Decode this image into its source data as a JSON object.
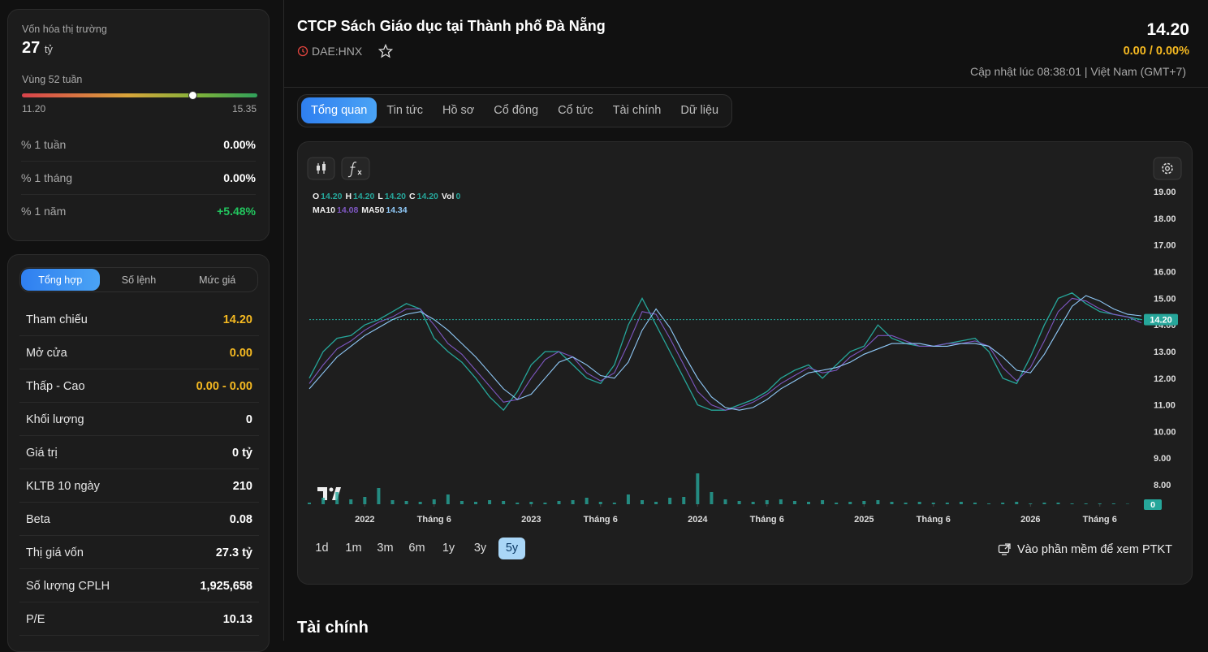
{
  "sidebar": {
    "market_cap": {
      "label": "Vốn hóa thị trường",
      "value": "27",
      "unit": "tỷ"
    },
    "range52": {
      "label": "Vùng 52 tuần",
      "low": {
        "value": 11.2,
        "label": "11.20"
      },
      "high": {
        "value": 15.35,
        "label": "15.35"
      },
      "current": 14.2
    },
    "changes": [
      {
        "label": "% 1 tuần",
        "value": "0.00%",
        "color": "#ffffff"
      },
      {
        "label": "% 1 tháng",
        "value": "0.00%",
        "color": "#ffffff"
      },
      {
        "label": "% 1 năm",
        "value": "+5.48%",
        "color": "#22c55e"
      }
    ],
    "tabs": [
      "Tổng hợp",
      "Số lệnh",
      "Mức giá"
    ],
    "active_tab": 0,
    "stats": [
      {
        "label": "Tham chiếu",
        "value": "14.20",
        "color": "#f5b921"
      },
      {
        "label": "Mở cửa",
        "value": "0.00",
        "color": "#f5b921"
      },
      {
        "label": "Thấp - Cao",
        "value": "0.00 - 0.00",
        "color": "#f5b921"
      },
      {
        "label": "Khối lượng",
        "value": "0",
        "color": "#ffffff"
      },
      {
        "label": "Giá trị",
        "value": "0 tỷ",
        "color": "#ffffff"
      },
      {
        "label": "KLTB 10 ngày",
        "value": "210",
        "color": "#ffffff"
      },
      {
        "label": "Beta",
        "value": "0.08",
        "color": "#ffffff"
      },
      {
        "label": "Thị giá vốn",
        "value": "27.3 tỷ",
        "color": "#ffffff"
      },
      {
        "label": "Số lượng CPLH",
        "value": "1,925,658",
        "color": "#ffffff"
      },
      {
        "label": "P/E",
        "value": "10.13",
        "color": "#ffffff"
      }
    ]
  },
  "header": {
    "title": "CTCP Sách Giáo dục tại Thành phố Đà Nẵng",
    "ticker": "DAE:HNX",
    "price": "14.20",
    "change": "0.00 / 0.00%",
    "updated": "Cập nhật lúc 08:38:01 | Việt Nam (GMT+7)"
  },
  "tabs": [
    "Tổng quan",
    "Tin tức",
    "Hồ sơ",
    "Cổ đông",
    "Cổ tức",
    "Tài chính",
    "Dữ liệu"
  ],
  "active_tab": 0,
  "chart_data": {
    "type": "line",
    "legend_ohlc": [
      {
        "key": "O",
        "text": "14.20"
      },
      {
        "key": "H",
        "text": "14.20"
      },
      {
        "key": "L",
        "text": "14.20"
      },
      {
        "key": "C",
        "text": "14.20"
      },
      {
        "key": "Vol",
        "text": "0"
      }
    ],
    "x": [
      0,
      1,
      2,
      3,
      4,
      5,
      6,
      7,
      8,
      9,
      10,
      11,
      12,
      13,
      14,
      15,
      16,
      17,
      18,
      19,
      20,
      21,
      22,
      23,
      24,
      25,
      26,
      27,
      28,
      29,
      30,
      31,
      32,
      33,
      34,
      35,
      36,
      37,
      38,
      39,
      40,
      41,
      42,
      43,
      44,
      45,
      46,
      47,
      48,
      49,
      50,
      51,
      52,
      53,
      54,
      55,
      56,
      57,
      58,
      59,
      60
    ],
    "xlim": [
      0,
      60
    ],
    "xticks": [
      {
        "value": 4,
        "label": "2022"
      },
      {
        "value": 9,
        "label": "Tháng 6"
      },
      {
        "value": 16,
        "label": "2023"
      },
      {
        "value": 21,
        "label": "Tháng 6"
      },
      {
        "value": 28,
        "label": "2024"
      },
      {
        "value": 33,
        "label": "Tháng 6"
      },
      {
        "value": 40,
        "label": "2025"
      },
      {
        "value": 45,
        "label": "Tháng 6"
      },
      {
        "value": 52,
        "label": "2026"
      },
      {
        "value": 57,
        "label": "Tháng 6"
      }
    ],
    "ylim": [
      7.27,
      19.4
    ],
    "yticks": [
      {
        "value": 8,
        "label": "8.00"
      },
      {
        "value": 9,
        "label": "9.00"
      },
      {
        "value": 10,
        "label": "10.00"
      },
      {
        "value": 11,
        "label": "11.00"
      },
      {
        "value": 12,
        "label": "12.00"
      },
      {
        "value": 13,
        "label": "13.00"
      },
      {
        "value": 14,
        "label": "14.00"
      },
      {
        "value": 15,
        "label": "15.00"
      },
      {
        "value": 16,
        "label": "16.00"
      },
      {
        "value": 17,
        "label": "17.00"
      },
      {
        "value": 18,
        "label": "18.00"
      },
      {
        "value": 19,
        "label": "19.00"
      }
    ],
    "grid": false,
    "series": [
      {
        "color": "#26a69a",
        "values": [
          12.0,
          13.0,
          13.5,
          13.6,
          14.0,
          14.2,
          14.5,
          14.8,
          14.6,
          13.5,
          13.0,
          12.6,
          12.0,
          11.3,
          10.8,
          11.5,
          12.5,
          13.0,
          13.0,
          12.5,
          12.0,
          11.8,
          12.5,
          14.0,
          15.0,
          14.0,
          13.0,
          12.0,
          11.0,
          10.8,
          10.8,
          11.0,
          11.2,
          11.5,
          12.0,
          12.3,
          12.5,
          12.0,
          12.5,
          13.0,
          13.2,
          14.0,
          13.5,
          13.3,
          13.2,
          13.2,
          13.3,
          13.4,
          13.5,
          13.0,
          12.0,
          11.8,
          12.8,
          14.0,
          15.0,
          15.2,
          14.8,
          14.5,
          14.4,
          14.3,
          14.2
        ]
      },
      {
        "name": "MA10",
        "color": "#7e57c2",
        "value_label": "14.08",
        "values": [
          11.8,
          12.5,
          13.1,
          13.4,
          13.8,
          14.1,
          14.3,
          14.6,
          14.6,
          14.0,
          13.3,
          12.9,
          12.3,
          11.7,
          11.1,
          11.2,
          12.0,
          12.7,
          13.0,
          12.8,
          12.2,
          11.9,
          12.2,
          13.3,
          14.5,
          14.4,
          13.5,
          12.5,
          11.5,
          11.0,
          10.8,
          10.9,
          11.1,
          11.4,
          11.8,
          12.1,
          12.4,
          12.2,
          12.3,
          12.8,
          13.1,
          13.6,
          13.6,
          13.4,
          13.2,
          13.2,
          13.3,
          13.3,
          13.4,
          13.2,
          12.4,
          11.9,
          12.4,
          13.4,
          14.5,
          15.0,
          14.9,
          14.6,
          14.4,
          14.3,
          14.08
        ]
      },
      {
        "name": "MA50",
        "color": "#90caf9",
        "value_label": "14.34",
        "values": [
          11.6,
          12.2,
          12.8,
          13.2,
          13.6,
          13.9,
          14.2,
          14.4,
          14.5,
          14.2,
          13.8,
          13.3,
          12.8,
          12.2,
          11.6,
          11.2,
          11.4,
          12.0,
          12.6,
          12.8,
          12.5,
          12.1,
          12.0,
          12.6,
          13.8,
          14.6,
          13.9,
          12.9,
          12.0,
          11.3,
          10.9,
          10.8,
          10.9,
          11.2,
          11.6,
          11.9,
          12.2,
          12.3,
          12.4,
          12.6,
          12.9,
          13.1,
          13.3,
          13.3,
          13.3,
          13.2,
          13.2,
          13.3,
          13.3,
          13.2,
          12.8,
          12.3,
          12.2,
          12.9,
          13.8,
          14.7,
          15.1,
          14.9,
          14.6,
          14.4,
          14.34
        ]
      }
    ],
    "volume": [
      2000,
      8000,
      15000,
      6000,
      9000,
      20000,
      5000,
      4000,
      3000,
      6000,
      12000,
      4000,
      3000,
      5000,
      4000,
      2000,
      3000,
      2000,
      4000,
      5000,
      8000,
      3000,
      2000,
      12000,
      5000,
      3000,
      8000,
      9000,
      38000,
      15000,
      6000,
      4000,
      3000,
      5000,
      6000,
      4000,
      3000,
      5000,
      2000,
      3000,
      4000,
      5000,
      3000,
      2000,
      3000,
      2000,
      2000,
      3000,
      2000,
      1000,
      2000,
      3000,
      1000,
      2000,
      2000,
      1000,
      1000,
      1000,
      1000,
      500,
      0
    ],
    "vlim": [
      0,
      40000
    ],
    "volume_color": "#26a69a",
    "last_price": {
      "value": 14.2,
      "label": "14.20"
    }
  },
  "ranges": [
    "1d",
    "1m",
    "3m",
    "6m",
    "1y",
    "3y",
    "5y"
  ],
  "active_range": 6,
  "pt_link": "Vào phần mềm để xem PTKT",
  "section_title": "Tài chính"
}
